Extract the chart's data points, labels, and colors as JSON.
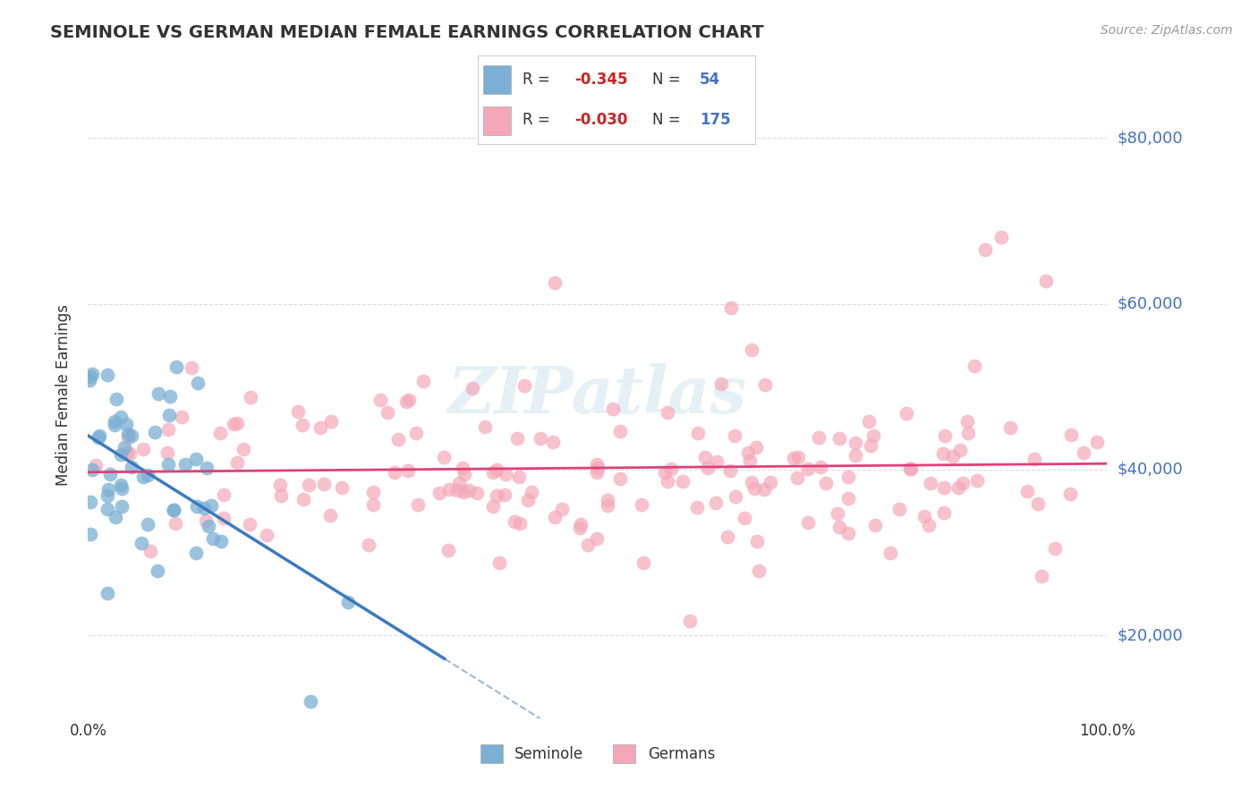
{
  "title": "SEMINOLE VS GERMAN MEDIAN FEMALE EARNINGS CORRELATION CHART",
  "source": "Source: ZipAtlas.com",
  "ylabel": "Median Female Earnings",
  "xlim": [
    0,
    1
  ],
  "ylim": [
    10000,
    88000
  ],
  "ytick_vals": [
    20000,
    40000,
    60000,
    80000
  ],
  "ytick_labels": [
    "$20,000",
    "$40,000",
    "$60,000",
    "$80,000"
  ],
  "xtick_vals": [
    0,
    1
  ],
  "xtick_labels": [
    "0.0%",
    "100.0%"
  ],
  "grid_color": "#cccccc",
  "background_color": "#ffffff",
  "seminole_color": "#7bafd4",
  "german_color": "#f4a7b9",
  "seminole_R": -0.345,
  "seminole_N": 54,
  "german_R": -0.03,
  "german_N": 175,
  "trend_seminole_color": "#3a7abf",
  "trend_german_color": "#e0407a",
  "trend_dashed_color": "#a0b8d0",
  "legend_r1": "-0.345",
  "legend_n1": "54",
  "legend_r2": "-0.030",
  "legend_n2": "175",
  "r_color": "#cc2222",
  "n_color": "#4472c4",
  "text_color": "#333333",
  "right_label_color": "#4472c4",
  "watermark": "ZIPatlas"
}
